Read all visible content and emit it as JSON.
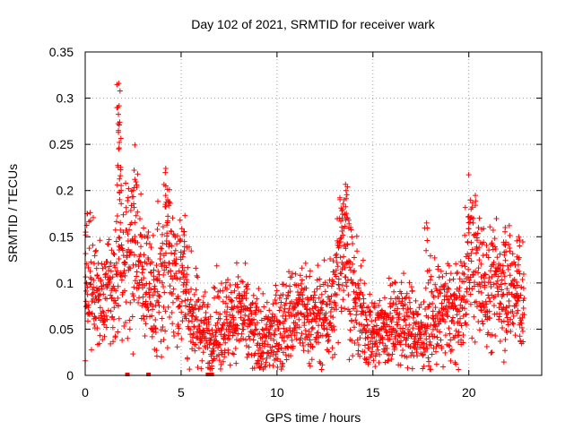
{
  "chart_data": {
    "type": "scatter",
    "title": "Day 102 of 2021, SRMTID for receiver wark",
    "xlabel": "GPS time / hours",
    "ylabel": "SRMTID / TECUs",
    "xlim": [
      0,
      23.8
    ],
    "ylim": [
      0,
      0.35
    ],
    "x_ticks": [
      0,
      5,
      10,
      15,
      20
    ],
    "x_tick_labels": [
      "0",
      "5",
      "10",
      "15",
      "20"
    ],
    "y_ticks": [
      0,
      0.05,
      0.1,
      0.15,
      0.2,
      0.25,
      0.3,
      0.35
    ],
    "y_tick_labels": [
      "0",
      "0.05",
      "0.1",
      "0.15",
      "0.2",
      "0.25",
      "0.3",
      "0.35"
    ],
    "grid": true,
    "marker": "plus",
    "series_color": "#ff0000",
    "zero_markers_x": [
      2.2,
      3.3,
      6.4,
      6.6
    ],
    "trend": {
      "x": [
        0,
        0.5,
        1,
        1.5,
        1.8,
        2.2,
        2.6,
        3,
        3.5,
        4,
        4.3,
        4.6,
        5,
        5.5,
        6,
        6.5,
        7,
        7.5,
        8,
        8.5,
        9,
        9.5,
        10,
        10.5,
        11,
        11.5,
        12,
        12.5,
        13,
        13.3,
        13.6,
        14,
        14.5,
        15,
        15.5,
        16,
        16.5,
        17,
        17.5,
        18,
        18.5,
        19,
        19.5,
        19.8,
        20,
        20.5,
        21,
        21.5,
        22,
        22.5,
        22.9
      ],
      "y": [
        0.095,
        0.1,
        0.085,
        0.1,
        0.135,
        0.125,
        0.14,
        0.1,
        0.085,
        0.11,
        0.14,
        0.12,
        0.1,
        0.07,
        0.05,
        0.04,
        0.055,
        0.06,
        0.07,
        0.055,
        0.04,
        0.035,
        0.05,
        0.06,
        0.07,
        0.065,
        0.06,
        0.065,
        0.075,
        0.15,
        0.14,
        0.08,
        0.06,
        0.045,
        0.05,
        0.055,
        0.06,
        0.05,
        0.045,
        0.06,
        0.065,
        0.07,
        0.06,
        0.1,
        0.14,
        0.11,
        0.09,
        0.1,
        0.1,
        0.085,
        0.075
      ]
    },
    "peaks": [
      {
        "x": 1.75,
        "y": 0.316
      },
      {
        "x": 1.7,
        "y": 0.29
      },
      {
        "x": 1.8,
        "y": 0.274
      },
      {
        "x": 1.75,
        "y": 0.245
      },
      {
        "x": 1.85,
        "y": 0.225
      },
      {
        "x": 2.55,
        "y": 0.222
      },
      {
        "x": 4.2,
        "y": 0.224
      },
      {
        "x": 4.3,
        "y": 0.19
      },
      {
        "x": 13.6,
        "y": 0.2
      },
      {
        "x": 13.5,
        "y": 0.19
      },
      {
        "x": 13.4,
        "y": 0.17
      },
      {
        "x": 17.8,
        "y": 0.165
      },
      {
        "x": 20.0,
        "y": 0.172
      },
      {
        "x": 21.9,
        "y": 0.16
      },
      {
        "x": 22.6,
        "y": 0.15
      },
      {
        "x": 0.1,
        "y": 0.175
      },
      {
        "x": 5.2,
        "y": 0.173
      }
    ]
  }
}
